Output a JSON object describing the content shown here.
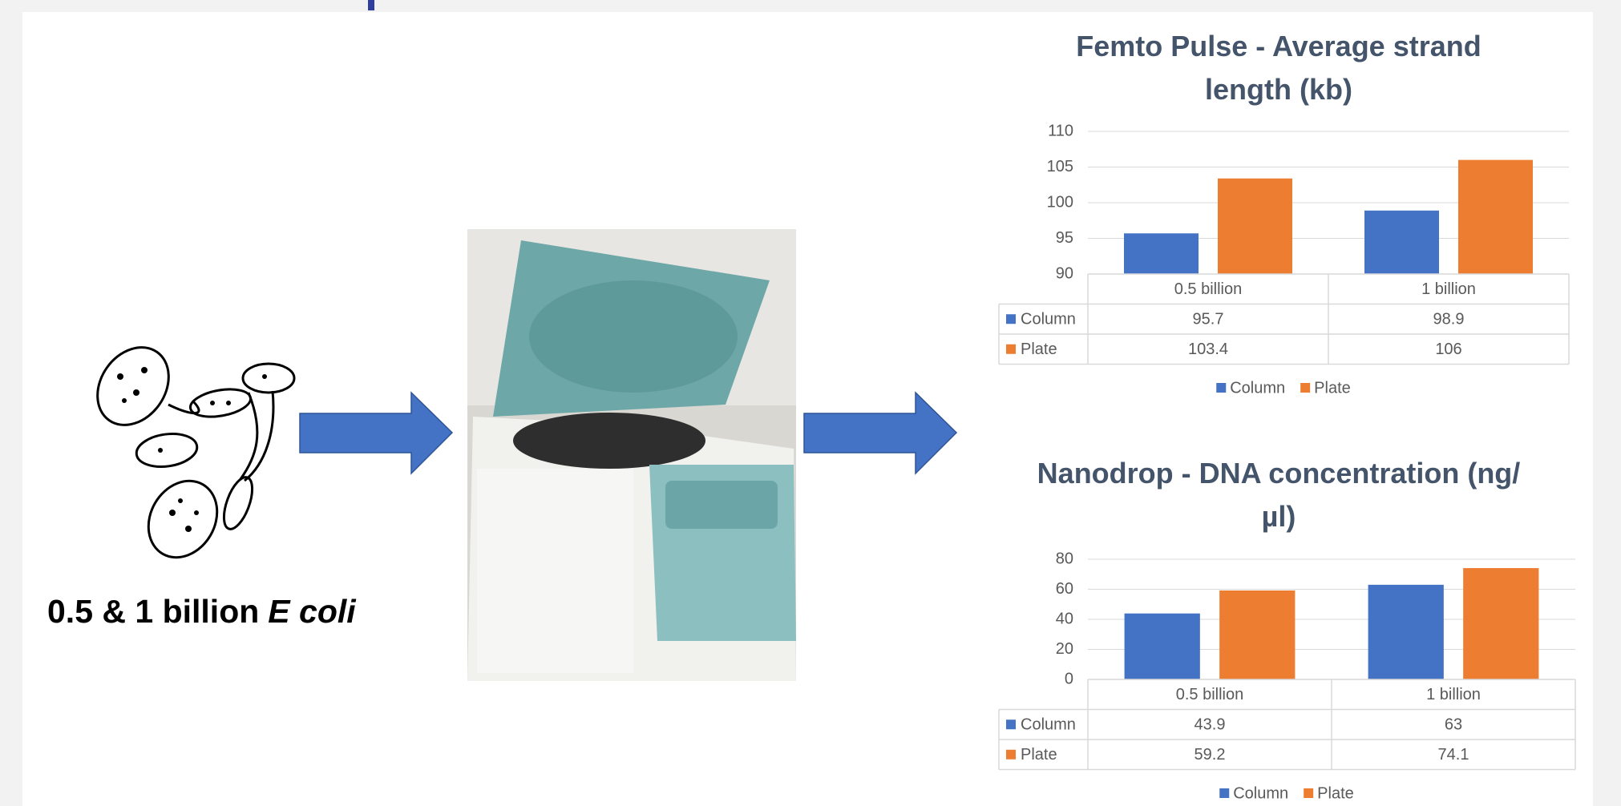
{
  "caption": [
    "0.5 & 1 billion",
    "E coli"
  ],
  "chart_data": [
    {
      "type": "bar",
      "title": "Femto Pulse - Average strand length (kb)",
      "categories": [
        "0.5 billion",
        "1 billion"
      ],
      "series": [
        {
          "name": "Column",
          "color": "#4472c4",
          "values": [
            95.7,
            98.9
          ]
        },
        {
          "name": "Plate",
          "color": "#ed7d31",
          "values": [
            103.4,
            106
          ]
        }
      ],
      "ylim": [
        90,
        110
      ],
      "yticks": [
        90,
        95,
        100,
        105,
        110
      ],
      "grid": true,
      "legend": "bottom",
      "data_table": true
    },
    {
      "type": "bar",
      "title": "Nanodrop - DNA concentration (ng/µl)",
      "categories": [
        "0.5 billion",
        "1 billion"
      ],
      "series": [
        {
          "name": "Column",
          "color": "#4472c4",
          "values": [
            43.9,
            63
          ]
        },
        {
          "name": "Plate",
          "color": "#ed7d31",
          "values": [
            59.2,
            74.1
          ]
        }
      ],
      "ylim": [
        0,
        80
      ],
      "yticks": [
        0,
        20,
        40,
        60,
        80
      ],
      "grid": true,
      "legend": "bottom",
      "data_table": true
    }
  ]
}
